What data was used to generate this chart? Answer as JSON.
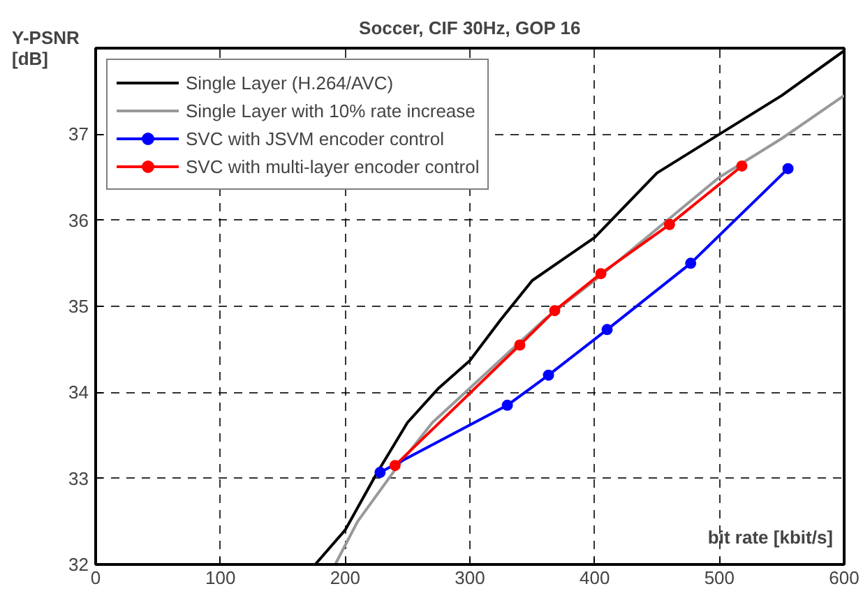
{
  "chart_data": {
    "type": "line",
    "title": "Soccer, CIF 30Hz, GOP 16",
    "xlabel": "bit rate [kbit/s]",
    "ylabel": "Y-PSNR\n[dB]",
    "xlim": [
      0,
      600
    ],
    "ylim": [
      32,
      38
    ],
    "xticks": [
      0,
      100,
      200,
      300,
      400,
      500,
      600
    ],
    "yticks": [
      32,
      33,
      34,
      35,
      36,
      37
    ],
    "grid": true,
    "legend": "top left",
    "series": [
      {
        "name": "Single Layer (H.264/AVC)",
        "color": "#000000",
        "marker": "none",
        "x": [
          176,
          200,
          225,
          250,
          275,
          300,
          325,
          350,
          375,
          400,
          450,
          500,
          550,
          600
        ],
        "values": [
          32,
          32.4,
          33.05,
          33.65,
          34.05,
          34.37,
          34.85,
          35.3,
          35.55,
          35.8,
          36.55,
          37.0,
          37.45,
          37.97
        ]
      },
      {
        "name": "Single Layer with 10% rate increase",
        "color": "#999999",
        "marker": "none",
        "x": [
          192,
          210,
          240,
          270,
          300,
          330,
          360,
          400,
          450,
          500,
          550,
          600
        ],
        "values": [
          32,
          32.5,
          33.1,
          33.65,
          34.05,
          34.45,
          34.85,
          35.3,
          35.9,
          36.5,
          36.95,
          37.45
        ]
      },
      {
        "name": "SVC with JSVM encoder control",
        "color": "#0000ff",
        "marker": "circle",
        "x": [
          228,
          330,
          363,
          410,
          477,
          555
        ],
        "values": [
          33.07,
          33.85,
          34.2,
          34.73,
          35.5,
          36.6
        ]
      },
      {
        "name": "SVC with multi-layer encoder control",
        "color": "#ff0000",
        "marker": "circle",
        "x": [
          240,
          340,
          368,
          405,
          460,
          518
        ],
        "values": [
          33.15,
          34.55,
          34.95,
          35.38,
          35.95,
          36.63
        ]
      }
    ]
  }
}
